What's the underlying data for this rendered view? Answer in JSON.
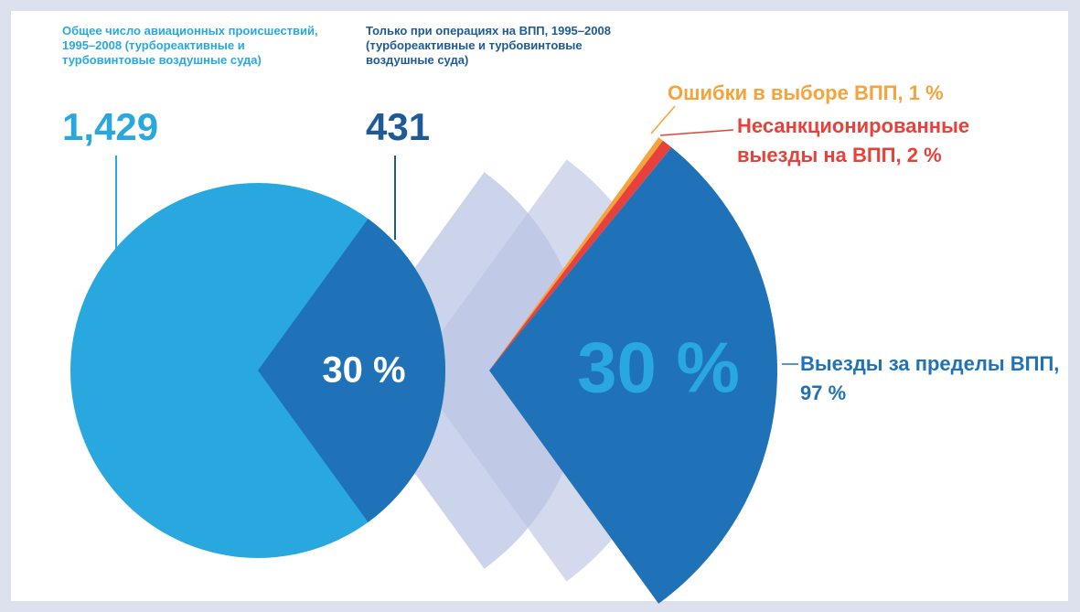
{
  "chart_data": {
    "type": "pie-of-pie",
    "main": {
      "label": "Общее число авиационных происшествий, 1995–2008 (турбореактивные и турбовинтовые воздушные суда)",
      "total": 1429,
      "total_label": "1,429",
      "color": "#29a8e0",
      "values": [
        30
      ],
      "value_labels": [
        "30 %"
      ],
      "slice_color": "#1f72b8"
    },
    "sub": {
      "label": "Только при операциях на ВПП, 1995–2008 (турбореактивные и турбовинтовые воздушные суда)",
      "total": 431,
      "series": [
        {
          "name": "Ошибки в выборе ВПП, 1 %",
          "value": 1,
          "color": "#f5a33a"
        },
        {
          "name": "Несанкционированные выезды на ВПП, 2 %",
          "value": 2,
          "color": "#e8403a"
        },
        {
          "name": "Выезды за пределы ВПП, 97 %",
          "value": 97,
          "color": "#1f72b8"
        }
      ],
      "center_label_color": "#29a8e0"
    }
  }
}
